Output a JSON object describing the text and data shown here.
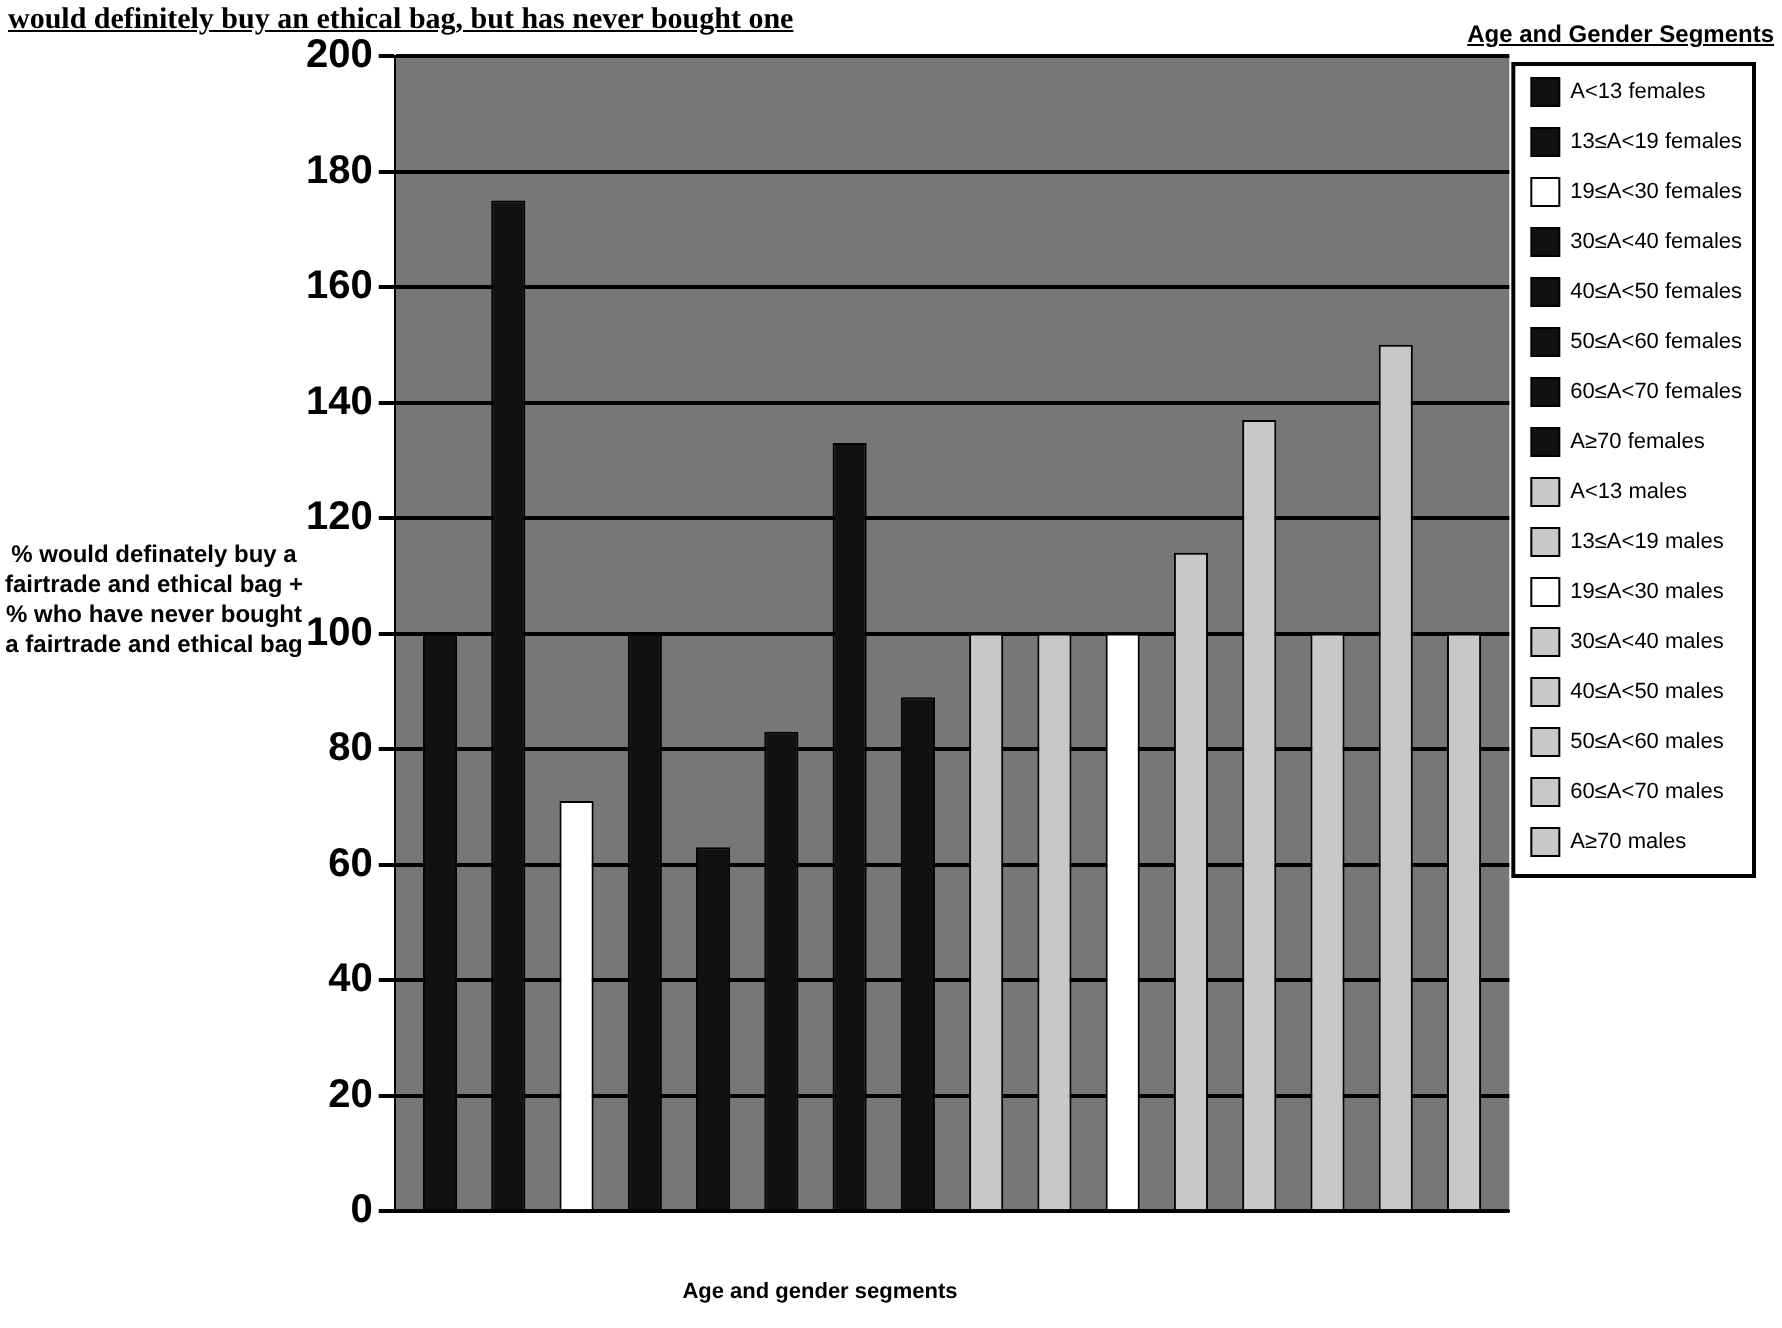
{
  "chart_data": {
    "type": "bar",
    "title": "would definitely buy an ethical bag, but has never bought one",
    "xlabel": "Age and gender segments",
    "ylabel": "% would definately buy a fairtrade and ethical bag + % who have never bought a fairtrade and ethical bag",
    "legend_title": "Age and Gender Segments",
    "categories": [
      null
    ],
    "ylim": [
      0,
      200
    ],
    "yticks": [
      0,
      20,
      40,
      60,
      80,
      100,
      120,
      140,
      160,
      180,
      200
    ],
    "grid": "y",
    "legend": "right",
    "series": [
      {
        "name": "A<13 females",
        "color": "#111111",
        "values": [
          100
        ]
      },
      {
        "name": "13≤A<19 females",
        "color": "#111111",
        "values": [
          175
        ]
      },
      {
        "name": "19≤A<30 females",
        "color": "#ffffff",
        "values": [
          71
        ]
      },
      {
        "name": "30≤A<40 females",
        "color": "#111111",
        "values": [
          100
        ]
      },
      {
        "name": "40≤A<50 females",
        "color": "#111111",
        "values": [
          63
        ]
      },
      {
        "name": "50≤A<60 females",
        "color": "#111111",
        "values": [
          83
        ]
      },
      {
        "name": "60≤A<70 females",
        "color": "#111111",
        "values": [
          133
        ]
      },
      {
        "name": "A≥70 females",
        "color": "#111111",
        "values": [
          89
        ]
      },
      {
        "name": "A<13 males",
        "color": "#c8c8c8",
        "values": [
          100
        ]
      },
      {
        "name": "13≤A<19 males",
        "color": "#c8c8c8",
        "values": [
          100
        ]
      },
      {
        "name": "19≤A<30 males",
        "color": "#ffffff",
        "values": [
          100
        ]
      },
      {
        "name": "30≤A<40 males",
        "color": "#c8c8c8",
        "values": [
          114
        ]
      },
      {
        "name": "40≤A<50 males",
        "color": "#c8c8c8",
        "values": [
          137
        ]
      },
      {
        "name": "50≤A<60 males",
        "color": "#c8c8c8",
        "values": [
          100
        ]
      },
      {
        "name": "60≤A<70 males",
        "color": "#c8c8c8",
        "values": [
          150
        ]
      },
      {
        "name": "A≥70 males",
        "color": "#c8c8c8",
        "values": [
          100
        ]
      }
    ]
  }
}
